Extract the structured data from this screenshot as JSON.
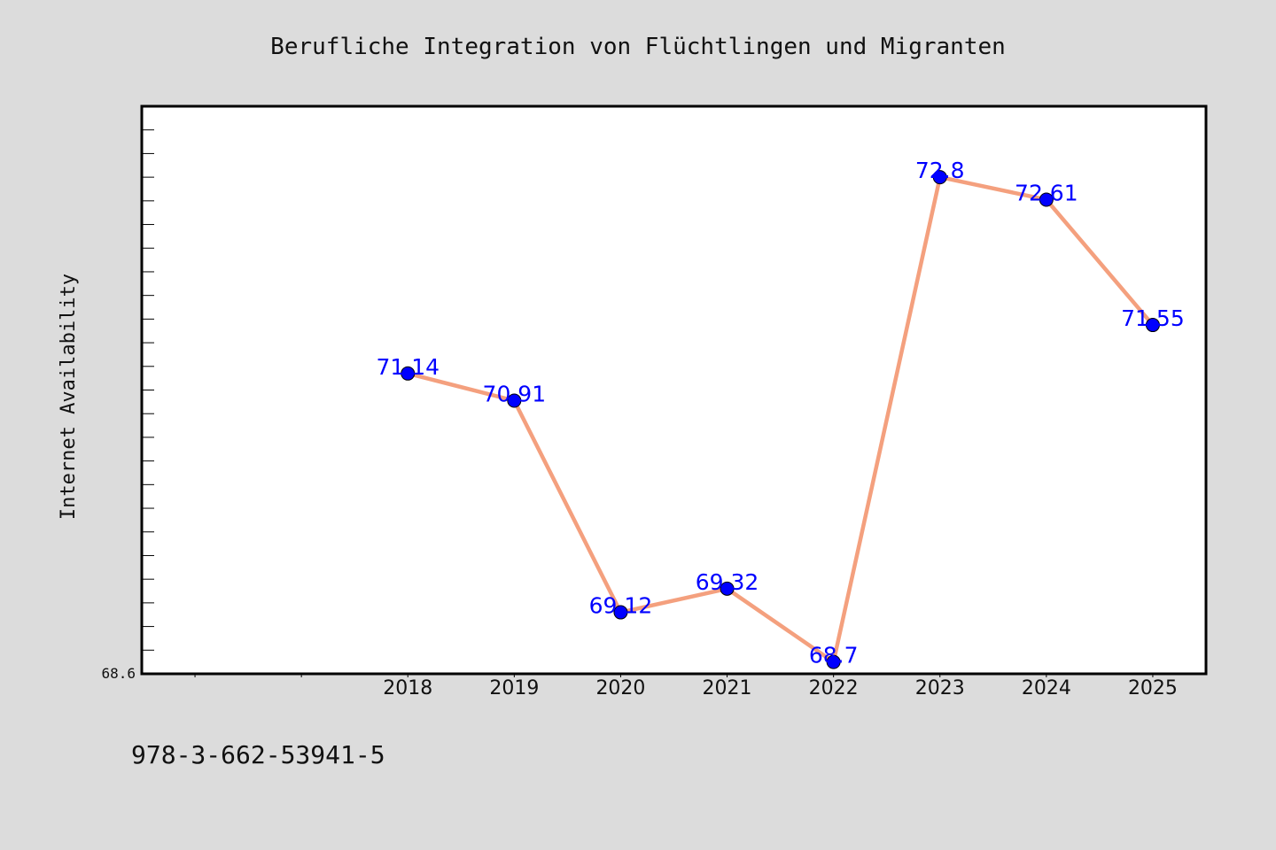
{
  "colors": {
    "background": "#dcdcdc",
    "plot_background": "#ffffff",
    "axes_border": "#000000",
    "line": "#f4a07e",
    "marker": "#0000ff",
    "label": "#0000ff"
  },
  "footer_note": "978-3-662-53941-5",
  "chart_data": {
    "type": "line",
    "title": "Berufliche Integration von Flüchtlingen und Migranten",
    "xlabel": "",
    "ylabel": "Internet Availability",
    "categories": [
      "2018",
      "2019",
      "2020",
      "2021",
      "2022",
      "2023",
      "2024",
      "2025"
    ],
    "x_axis_slots": 10,
    "first_category_slot": 2,
    "series": [
      {
        "values": [
          71.14,
          70.91,
          69.12,
          69.32,
          68.7,
          72.8,
          72.61,
          71.55
        ],
        "data_labels": [
          "71.14",
          "70.91",
          "69.12",
          "69.32",
          "68.7",
          "72.8",
          "72.61",
          "71.55"
        ]
      }
    ],
    "ylim": [
      68.6,
      73.4
    ],
    "y_ticks": [
      68.6
    ],
    "y_tick_labels": [
      "68.6"
    ],
    "y_minor_tick_step": 0.2,
    "grid": false,
    "legend": "none",
    "markers": true
  }
}
